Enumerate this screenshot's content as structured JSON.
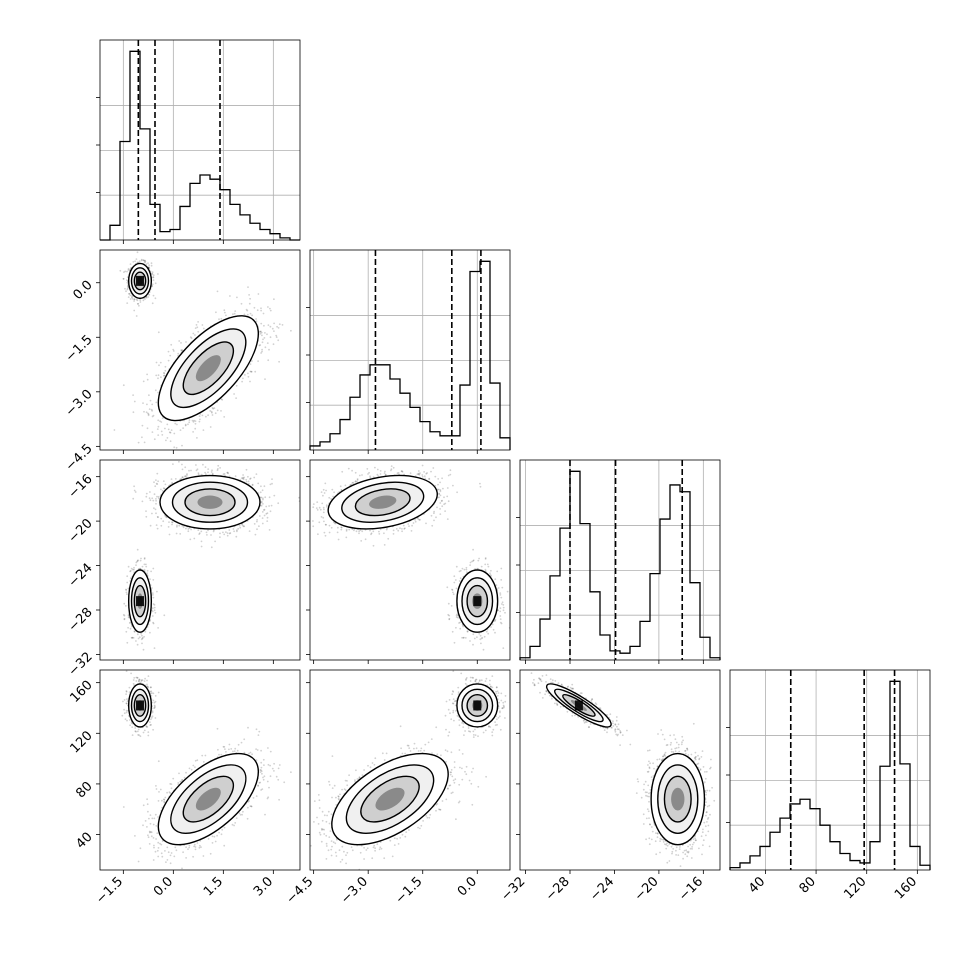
{
  "figure": {
    "type": "corner-plot",
    "n_params": 4
  },
  "chart_data": {
    "type": "corner",
    "grid": true,
    "axes": [
      {
        "range": [
          -2.2,
          3.8
        ],
        "ticks": [
          -1.5,
          0.0,
          1.5,
          3.0
        ],
        "tick_labels": [
          "−1.5",
          "0.0",
          "1.5",
          "3.0"
        ]
      },
      {
        "range": [
          -4.6,
          0.9
        ],
        "ticks": [
          -4.5,
          -3.0,
          -1.5,
          0.0
        ],
        "tick_labels": [
          "−4.5",
          "−3.0",
          "−1.5",
          "0.0"
        ]
      },
      {
        "range": [
          -32.5,
          -14.5
        ],
        "ticks": [
          -32,
          -28,
          -24,
          -20,
          -16
        ],
        "tick_labels": [
          "−32",
          "−28",
          "−24",
          "−20",
          "−16"
        ]
      },
      {
        "range": [
          12,
          170
        ],
        "ticks": [
          40,
          80,
          120,
          160
        ],
        "tick_labels": [
          "40",
          "80",
          "120",
          "160"
        ]
      }
    ],
    "histograms": [
      {
        "param": 0,
        "edges": [
          -2.2,
          -1.9,
          -1.6,
          -1.3,
          -1.0,
          -0.7,
          -0.4,
          -0.1,
          0.2,
          0.5,
          0.8,
          1.1,
          1.4,
          1.7,
          2.0,
          2.3,
          2.6,
          2.9,
          3.2,
          3.5,
          3.8
        ],
        "counts": [
          0,
          0.07,
          0.47,
          0.9,
          0.53,
          0.17,
          0.04,
          0.05,
          0.16,
          0.27,
          0.31,
          0.29,
          0.24,
          0.17,
          0.12,
          0.08,
          0.05,
          0.03,
          0.01,
          0
        ],
        "quantile_lines": [
          -1.05,
          -0.55,
          1.4
        ]
      },
      {
        "param": 1,
        "edges": [
          -4.6,
          -4.325,
          -4.05,
          -3.775,
          -3.5,
          -3.225,
          -2.95,
          -2.675,
          -2.4,
          -2.125,
          -1.85,
          -1.575,
          -1.3,
          -1.025,
          -0.75,
          -0.475,
          -0.2,
          0.075,
          0.35,
          0.625,
          0.9
        ],
        "counts": [
          0.02,
          0.04,
          0.08,
          0.15,
          0.26,
          0.37,
          0.42,
          0.42,
          0.35,
          0.28,
          0.21,
          0.14,
          0.09,
          0.07,
          0.07,
          0.32,
          0.88,
          0.93,
          0.33,
          0.06
        ],
        "quantile_lines": [
          -2.8,
          -0.7,
          0.1
        ]
      },
      {
        "param": 2,
        "edges": [
          -32.5,
          -31.6,
          -30.7,
          -29.8,
          -28.9,
          -28.0,
          -27.1,
          -26.2,
          -25.3,
          -24.4,
          -23.5,
          -22.6,
          -21.7,
          -20.8,
          -19.9,
          -19.0,
          -18.1,
          -17.2,
          -16.3,
          -15.4,
          -14.5
        ],
        "counts": [
          0.01,
          0.06,
          0.18,
          0.37,
          0.58,
          0.83,
          0.6,
          0.3,
          0.11,
          0.04,
          0.03,
          0.06,
          0.17,
          0.38,
          0.62,
          0.77,
          0.74,
          0.34,
          0.1,
          0.01
        ],
        "quantile_lines": [
          -28.0,
          -23.9,
          -17.9
        ]
      },
      {
        "param": 3,
        "edges": [
          12,
          19.9,
          27.8,
          35.7,
          43.6,
          51.5,
          59.4,
          67.3,
          75.2,
          83.1,
          91,
          98.9,
          106.8,
          114.7,
          122.6,
          130.5,
          138.4,
          146.3,
          154.2,
          162.1,
          170
        ],
        "counts": [
          0.01,
          0.03,
          0.06,
          0.1,
          0.16,
          0.22,
          0.28,
          0.3,
          0.26,
          0.19,
          0.12,
          0.07,
          0.04,
          0.03,
          0.12,
          0.44,
          0.8,
          0.45,
          0.1,
          0.02
        ],
        "quantile_lines": [
          60,
          118,
          142
        ]
      }
    ],
    "pair_clusters": [
      {
        "row": 1,
        "col": 0,
        "clusters": [
          {
            "cx": -1.0,
            "cy": 0.05,
            "sx": 0.17,
            "sy": 0.24,
            "rho": 0.0,
            "w": 0.33
          },
          {
            "cx": 1.05,
            "cy": -2.35,
            "sx": 0.75,
            "sy": 0.72,
            "rho": 0.66,
            "w": 0.67
          }
        ]
      },
      {
        "row": 2,
        "col": 0,
        "clusters": [
          {
            "cx": -1.0,
            "cy": -27.2,
            "sx": 0.17,
            "sy": 1.4,
            "rho": 0.0,
            "w": 0.33
          },
          {
            "cx": 1.1,
            "cy": -18.3,
            "sx": 0.75,
            "sy": 1.2,
            "rho": 0.0,
            "w": 0.67
          }
        ]
      },
      {
        "row": 3,
        "col": 0,
        "clusters": [
          {
            "cx": -1.0,
            "cy": 142,
            "sx": 0.17,
            "sy": 8.5,
            "rho": 0.0,
            "w": 0.33
          },
          {
            "cx": 1.05,
            "cy": 68,
            "sx": 0.75,
            "sy": 18,
            "rho": 0.6,
            "w": 0.67
          }
        ]
      },
      {
        "row": 2,
        "col": 1,
        "clusters": [
          {
            "cx": 0.0,
            "cy": -27.2,
            "sx": 0.28,
            "sy": 1.4,
            "rho": 0.0,
            "w": 0.35
          },
          {
            "cx": -2.6,
            "cy": -18.3,
            "sx": 0.75,
            "sy": 1.2,
            "rho": 0.3,
            "w": 0.65
          }
        ]
      },
      {
        "row": 3,
        "col": 1,
        "clusters": [
          {
            "cx": 0.0,
            "cy": 142,
            "sx": 0.28,
            "sy": 8.5,
            "rho": 0.0,
            "w": 0.35
          },
          {
            "cx": -2.4,
            "cy": 68,
            "sx": 0.8,
            "sy": 18,
            "rho": 0.55,
            "w": 0.65
          }
        ]
      },
      {
        "row": 3,
        "col": 2,
        "clusters": [
          {
            "cx": -27.2,
            "cy": 142,
            "sx": 1.45,
            "sy": 8.5,
            "rho": -0.88,
            "w": 0.35
          },
          {
            "cx": -18.3,
            "cy": 68,
            "sx": 1.2,
            "sy": 18,
            "rho": 0.0,
            "w": 0.65
          }
        ]
      }
    ],
    "contour_levels": [
      0.5,
      1.0,
      1.5,
      2.0
    ]
  }
}
